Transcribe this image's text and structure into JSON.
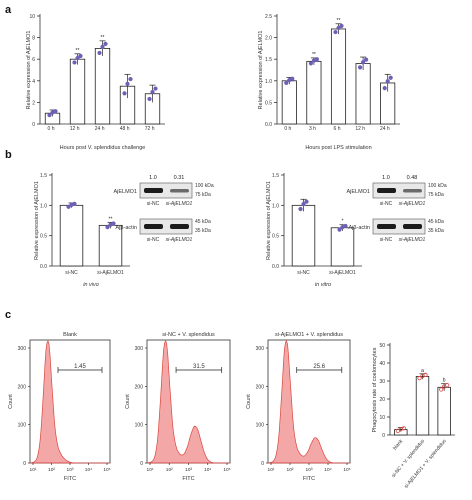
{
  "panel_labels": {
    "a": "a",
    "b": "b",
    "c": "c"
  },
  "colors": {
    "purple": "#6f5fb5",
    "red": "#d9463e",
    "axis": "#333333",
    "blot_band": "#1b1b1b"
  },
  "chart_data": [
    {
      "id": "a1",
      "type": "bar",
      "categories": [
        "0 h",
        "12 h",
        "24 h",
        "48 h",
        "72 h"
      ],
      "values": [
        1.0,
        6.0,
        7.0,
        3.5,
        2.8
      ],
      "errors": [
        0.3,
        0.5,
        0.7,
        1.1,
        0.8
      ],
      "sig": [
        "",
        "**",
        "**",
        "",
        ""
      ],
      "xlabel": "Hours post V. splendidus challenge",
      "ylabel": "Relative expression of AjELMO1",
      "ylim": [
        0,
        10
      ],
      "yticks": [
        "0",
        "2",
        "4",
        "6",
        "8",
        "10"
      ]
    },
    {
      "id": "a2",
      "type": "bar",
      "categories": [
        "0 h",
        "3 h",
        "6 h",
        "12 h",
        "24 h"
      ],
      "values": [
        1.0,
        1.45,
        2.2,
        1.4,
        0.95
      ],
      "errors": [
        0.08,
        0.08,
        0.12,
        0.15,
        0.2
      ],
      "sig": [
        "",
        "**",
        "**",
        "",
        ""
      ],
      "xlabel": "Hours post LPS stimulation",
      "ylabel": "Relative expression of AjELMO1",
      "ylim": [
        0,
        2.5
      ],
      "yticks": [
        "0.0",
        "0.5",
        "1.0",
        "1.5",
        "2.0",
        "2.5"
      ]
    },
    {
      "id": "b1",
      "type": "bar",
      "categories": [
        "si-NC",
        "si-AjELMO1"
      ],
      "values": [
        1.0,
        0.67
      ],
      "errors": [
        0.04,
        0.05
      ],
      "sig": [
        "",
        "**"
      ],
      "xlabel": "in vivo",
      "ylabel": "Relative expression of AjELMO1",
      "ylim": [
        0,
        1.5
      ],
      "yticks": [
        "0.0",
        "0.5",
        "1.0",
        "1.5"
      ]
    },
    {
      "id": "b2",
      "type": "bar",
      "categories": [
        "si-NC",
        "si-AjELMO1"
      ],
      "values": [
        1.0,
        0.63
      ],
      "errors": [
        0.1,
        0.05
      ],
      "sig": [
        "",
        "*"
      ],
      "xlabel": "in vitro",
      "ylabel": "Relative expression of AjELMO1",
      "ylim": [
        0,
        1.5
      ],
      "yticks": [
        "0.0",
        "0.5",
        "1.0",
        "1.5"
      ]
    },
    {
      "id": "c4",
      "type": "bar",
      "categories": [
        "blank",
        "si-NC + V. splendidus",
        "si-AjELMO1 + V. splendidus"
      ],
      "values": [
        3,
        32.5,
        26.5
      ],
      "errors": [
        1.2,
        1.5,
        2.0
      ],
      "sig": [
        "",
        "a",
        "b"
      ],
      "xlabel": "",
      "ylabel": "Phagocytosis rate of coelomocytes",
      "ylim": [
        0,
        50
      ],
      "yticks": [
        "0",
        "10",
        "20",
        "30",
        "40",
        "50"
      ]
    }
  ],
  "blots": [
    {
      "values": [
        "1.0",
        "0.31"
      ],
      "target_label": "AjELMO1",
      "ref_label": "Ajβ-actin",
      "target_sizes": [
        "100 kDa",
        "75 kDa"
      ],
      "ref_sizes": [
        "45 kDa",
        "35 kDa"
      ],
      "lanes": [
        "si-NC",
        "si-AjELMO1"
      ]
    },
    {
      "values": [
        "1.0",
        "0.48"
      ],
      "target_label": "AjELMO1",
      "ref_label": "Ajβ-actin",
      "target_sizes": [
        "100 kDa",
        "75 kDa"
      ],
      "ref_sizes": [
        "45 kDa",
        "35 kDa"
      ],
      "lanes": [
        "si-NC",
        "si-AjELMO1"
      ]
    }
  ],
  "flow": [
    {
      "title": "Blank",
      "gate_value": "1.45",
      "xlabel": "FITC",
      "ylabel": "Count",
      "yticks": [
        "0",
        "100",
        "200",
        "300"
      ],
      "xticks": [
        "10¹",
        "10²",
        "10³",
        "10⁴",
        "10⁵"
      ]
    },
    {
      "title": "si-NC + V. splendidus",
      "gate_value": "31.5",
      "xlabel": "FITC",
      "ylabel": "Count",
      "yticks": [
        "0",
        "100",
        "200",
        "300"
      ],
      "xticks": [
        "10¹",
        "10²",
        "10³",
        "10⁴",
        "10⁵"
      ]
    },
    {
      "title": "si-AjELMO1 + V. splendidus",
      "gate_value": "25.6",
      "xlabel": "FITC",
      "ylabel": "Count",
      "yticks": [
        "0",
        "100",
        "200",
        "300"
      ],
      "xticks": [
        "10¹",
        "10²",
        "10³",
        "10⁴",
        "10⁵"
      ]
    }
  ]
}
